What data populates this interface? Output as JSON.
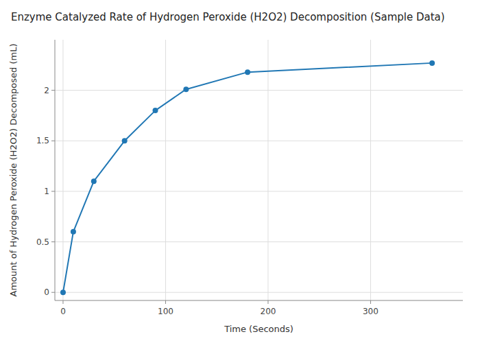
{
  "chart_data": {
    "type": "line",
    "title": "Enzyme Catalyzed Rate of Hydrogen Peroxide (H2O2) Decomposition (Sample Data)",
    "x_label": "Time (Seconds)",
    "y_label": "Amount of Hydrogen Peroxide (H2O2) Decomposed (mL)",
    "x": [
      0,
      10,
      30,
      60,
      90,
      120,
      180,
      360
    ],
    "values": [
      0,
      0.6,
      1.1,
      1.5,
      1.8,
      2.01,
      2.18,
      2.27
    ],
    "color": "#2077b4",
    "marker": "circle",
    "xlim": [
      -8,
      390
    ],
    "ylim": [
      -0.08,
      2.5
    ],
    "xticks": [
      0,
      100,
      200,
      300
    ],
    "yticks": [
      0,
      0.5,
      1,
      1.5,
      2
    ],
    "grid": true
  }
}
